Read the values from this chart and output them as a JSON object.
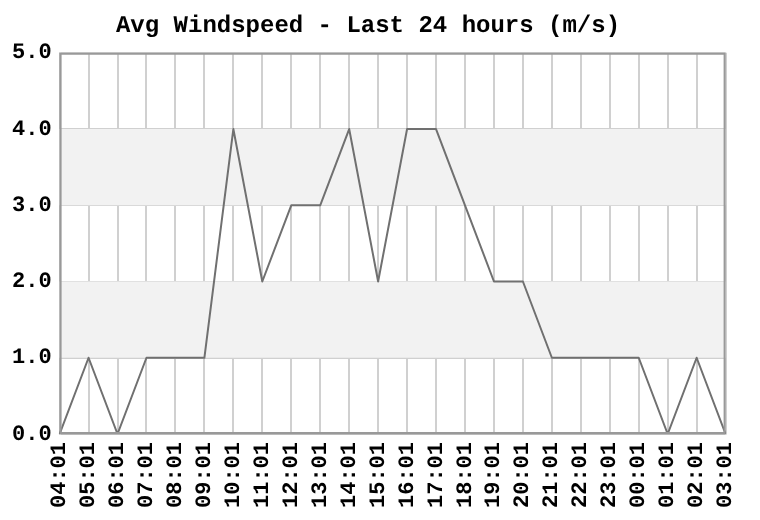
{
  "chart_data": {
    "type": "line",
    "title": "Avg Windspeed - Last 24 hours (m/s)",
    "categories": [
      "04:01",
      "05:01",
      "06:01",
      "07:01",
      "08:01",
      "09:01",
      "10:01",
      "11:01",
      "12:01",
      "13:01",
      "14:01",
      "15:01",
      "16:01",
      "17:01",
      "18:01",
      "19:01",
      "20:01",
      "21:01",
      "22:01",
      "23:01",
      "00:01",
      "01:01",
      "02:01",
      "03:01"
    ],
    "series": [
      {
        "color": "#707070",
        "values": [
          0,
          1,
          0,
          1,
          1,
          1,
          4,
          2,
          3,
          3,
          4,
          2,
          4,
          4,
          3,
          2,
          2,
          1,
          1,
          1,
          1,
          0,
          1,
          0
        ]
      }
    ],
    "ylim": [
      0,
      5
    ],
    "yticks": [
      {
        "value": 0,
        "label": "0.0"
      },
      {
        "value": 1,
        "label": "1.0"
      },
      {
        "value": 2,
        "label": "2.0"
      },
      {
        "value": 3,
        "label": "3.0"
      },
      {
        "value": 4,
        "label": "4.0"
      },
      {
        "value": 5,
        "label": "5.0"
      }
    ],
    "bands": [
      {
        "axis": "y",
        "from": 1,
        "to": 2,
        "color": "#f2f2f2"
      },
      {
        "axis": "y",
        "from": 3,
        "to": 4,
        "color": "#f2f2f2"
      }
    ],
    "grid": true,
    "marker": "none",
    "line_style": "solid",
    "legend": false
  }
}
